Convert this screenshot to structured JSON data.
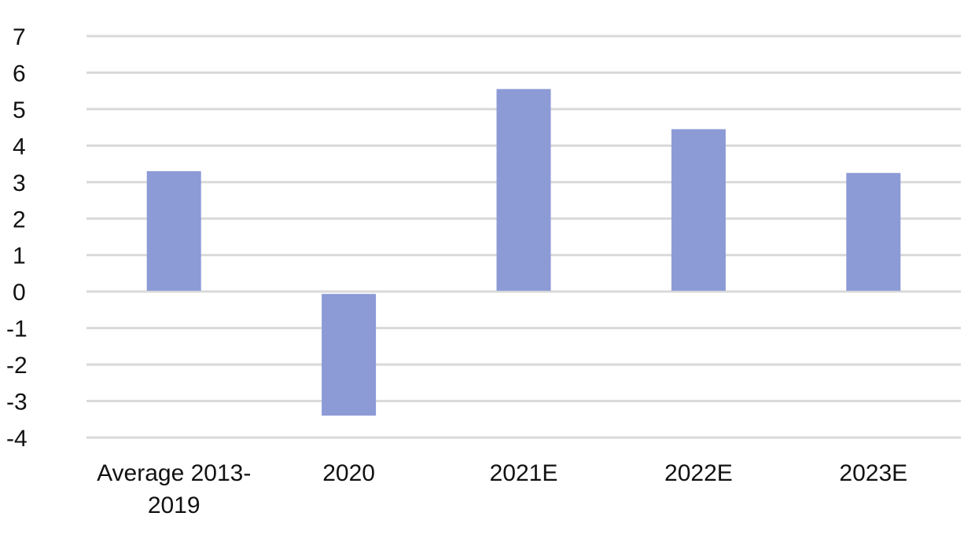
{
  "chart_data": {
    "type": "bar",
    "categories": [
      [
        "Average 2013-",
        "2019"
      ],
      [
        "2020"
      ],
      [
        "2021E"
      ],
      [
        "2022E"
      ],
      [
        "2023E"
      ]
    ],
    "values": [
      3.3,
      -3.4,
      5.55,
      4.45,
      3.25
    ],
    "ylim": [
      -4,
      7
    ],
    "yticks": [
      "7",
      "6",
      "5",
      "4",
      "3",
      "2",
      "1",
      "0",
      "-1",
      "-2",
      "-3",
      "-4"
    ],
    "grid": true,
    "legend": "none",
    "title": "",
    "xlabel": "",
    "ylabel": ""
  },
  "colors": {
    "bar_fill": "#8c9ad6",
    "grid": "#d9d9d9",
    "text": "#111111"
  }
}
